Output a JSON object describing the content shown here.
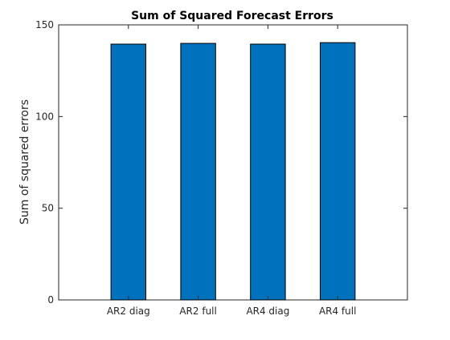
{
  "chart_data": {
    "type": "bar",
    "title": "Sum of Squared Forecast Errors",
    "xlabel": "",
    "ylabel": "Sum of squared errors",
    "categories": [
      "AR2 diag",
      "AR2 full",
      "AR4 diag",
      "AR4 full"
    ],
    "values": [
      139.5,
      139.9,
      139.5,
      140.3
    ],
    "ylim": [
      0,
      150
    ],
    "yticks": [
      0,
      50,
      100,
      150
    ],
    "grid": false,
    "legend": "none",
    "colors": {
      "bar_fill": "#0072BD",
      "bar_edge": "#000000",
      "axis": "#262626",
      "background": "#ffffff"
    }
  }
}
